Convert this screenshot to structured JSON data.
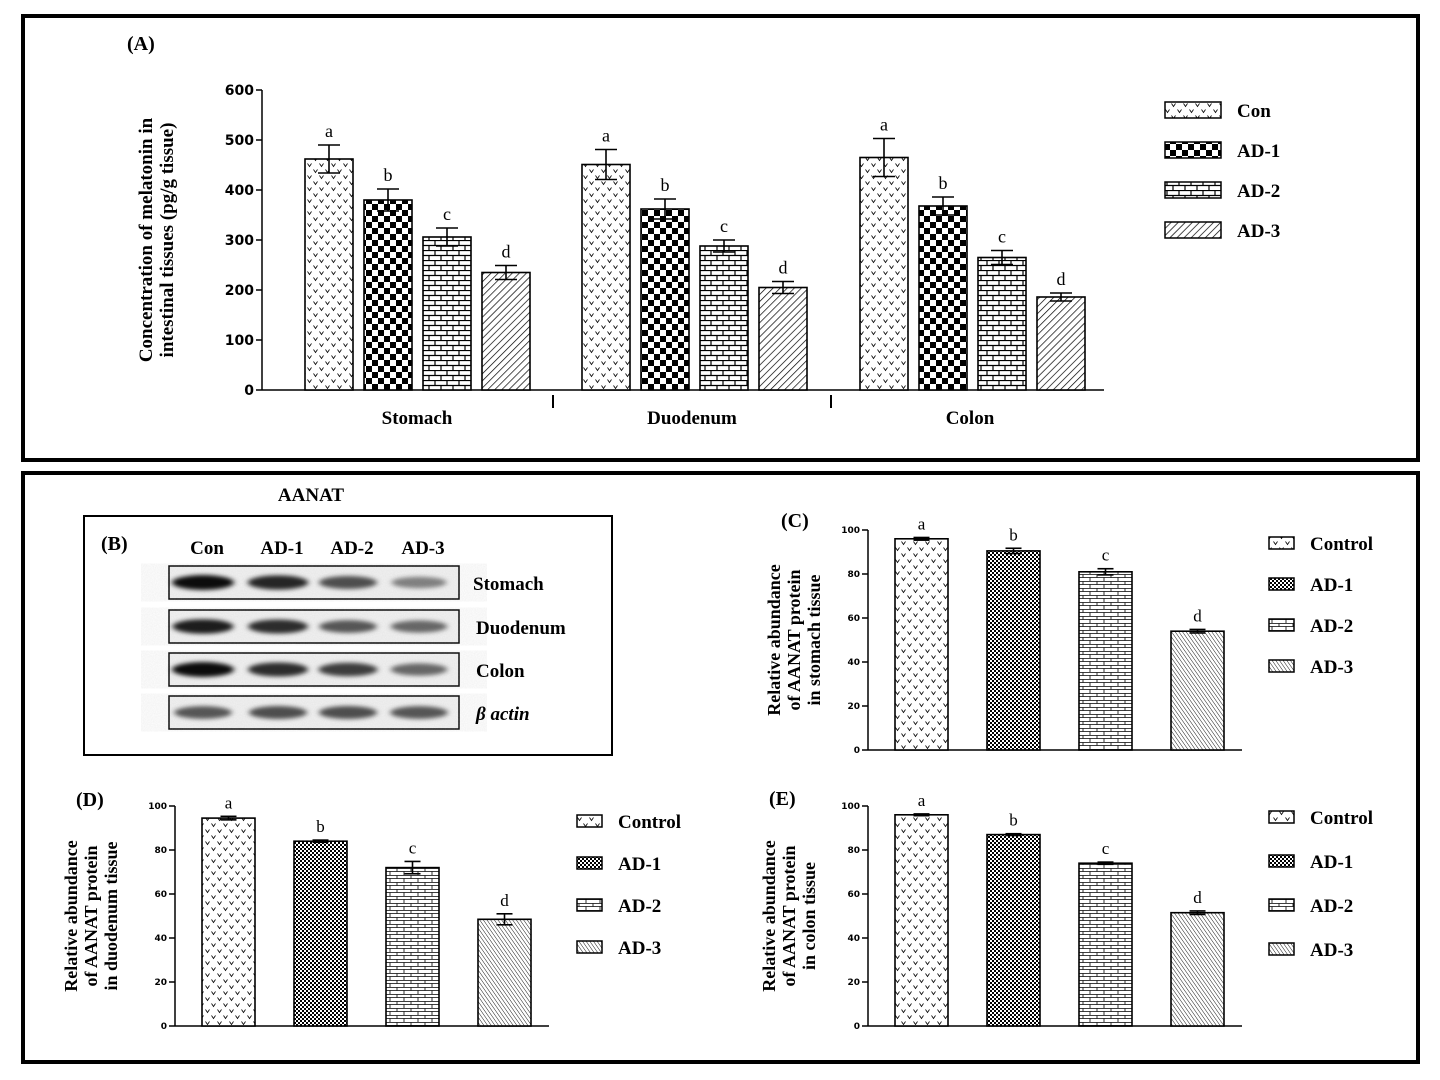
{
  "blot": {
    "title": "AANAT",
    "panel_label": "(B)",
    "lanes": [
      "Con",
      "AD-1",
      "AD-2",
      "AD-3"
    ],
    "rows": [
      "Stomach",
      "Duodenum",
      "Colon",
      "β actin"
    ],
    "intensity": [
      [
        1.0,
        0.85,
        0.6,
        0.3
      ],
      [
        0.9,
        0.8,
        0.55,
        0.45
      ],
      [
        1.0,
        0.8,
        0.7,
        0.45
      ],
      [
        0.55,
        0.6,
        0.6,
        0.55
      ]
    ]
  },
  "chart_data": [
    {
      "id": "A",
      "panel_label": "(A)",
      "type": "bar",
      "categories": [
        "Stomach",
        "Duodenum",
        "Colon"
      ],
      "series": [
        {
          "name": "Con",
          "values": [
            462,
            451,
            465
          ],
          "errors": [
            28,
            30,
            38
          ]
        },
        {
          "name": "AD-1",
          "values": [
            380,
            362,
            368
          ],
          "errors": [
            22,
            20,
            18
          ]
        },
        {
          "name": "AD-2",
          "values": [
            306,
            288,
            265
          ],
          "errors": [
            18,
            12,
            14
          ]
        },
        {
          "name": "AD-3",
          "values": [
            235,
            205,
            186
          ],
          "errors": [
            14,
            12,
            8
          ]
        }
      ],
      "letters": [
        [
          "a",
          "b",
          "c",
          "d"
        ],
        [
          "a",
          "b",
          "c",
          "d"
        ],
        [
          "a",
          "b",
          "c",
          "d"
        ]
      ],
      "ylabel": [
        "Concentration of melatonin in",
        "intestinal tissues (pg/g tissue)"
      ],
      "ylim": [
        0,
        600
      ],
      "yticks": [
        "0",
        "100",
        "200",
        "300",
        "400",
        "500",
        "600"
      ],
      "legend": "right"
    },
    {
      "id": "C",
      "panel_label": "(C)",
      "type": "bar",
      "categories": [
        "Control",
        "AD-1",
        "AD-2",
        "AD-3"
      ],
      "values": [
        96,
        90.5,
        81,
        54
      ],
      "errors": [
        0.6,
        1.2,
        1.4,
        0.8
      ],
      "letters": [
        "a",
        "b",
        "c",
        "d"
      ],
      "ylabel": [
        "Relative abundance",
        "of AANAT protein",
        "in stomach tissue"
      ],
      "ylim": [
        0,
        100
      ],
      "yticks": [
        "0",
        "20",
        "40",
        "60",
        "80",
        "100"
      ],
      "legend": "right"
    },
    {
      "id": "D",
      "panel_label": "(D)",
      "type": "bar",
      "categories": [
        "Control",
        "AD-1",
        "AD-2",
        "AD-3"
      ],
      "values": [
        94.5,
        84,
        72,
        48.5
      ],
      "errors": [
        0.8,
        0.5,
        2.8,
        2.5
      ],
      "letters": [
        "a",
        "b",
        "c",
        "d"
      ],
      "ylabel": [
        "Relative abundance",
        "of AANAT protein",
        "in duodenum tissue"
      ],
      "ylim": [
        0,
        100
      ],
      "yticks": [
        "0",
        "20",
        "40",
        "60",
        "80",
        "100"
      ],
      "legend": "right"
    },
    {
      "id": "E",
      "panel_label": "(E)",
      "type": "bar",
      "categories": [
        "Control",
        "AD-1",
        "AD-2",
        "AD-3"
      ],
      "values": [
        96,
        87,
        74,
        51.5
      ],
      "errors": [
        0.4,
        0.4,
        0.5,
        0.8
      ],
      "letters": [
        "a",
        "b",
        "c",
        "d"
      ],
      "ylabel": [
        "Relative abundance",
        "of AANAT protein",
        "in colon tissue"
      ],
      "ylim": [
        0,
        100
      ],
      "yticks": [
        "0",
        "20",
        "40",
        "60",
        "80",
        "100"
      ],
      "legend": "right"
    }
  ]
}
